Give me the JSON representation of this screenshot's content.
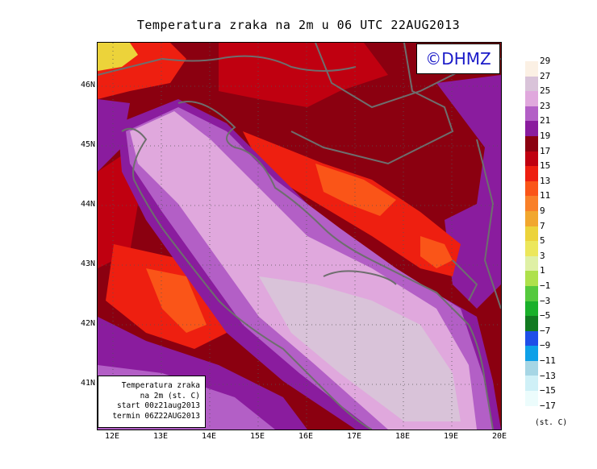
{
  "title": "Temperatura zraka na 2m u 06 UTC 22AUG2013",
  "logo": "©DHMZ",
  "info": {
    "line1": "Temperatura zraka",
    "line2": "na 2m (st. C)",
    "line3": "start 00z21aug2013",
    "line4": "termin 06Z22AUG2013"
  },
  "lat_labels": [
    "46N",
    "45N",
    "44N",
    "43N",
    "42N",
    "41N"
  ],
  "lon_labels": [
    "12E",
    "13E",
    "14E",
    "15E",
    "16E",
    "17E",
    "18E",
    "19E",
    "20E"
  ],
  "colorbar": {
    "labels": [
      "29",
      "27",
      "25",
      "23",
      "21",
      "19",
      "17",
      "15",
      "13",
      "11",
      "9",
      "7",
      "5",
      "3",
      "1",
      "−1",
      "−3",
      "−5",
      "−7",
      "−9",
      "−11",
      "−13",
      "−15",
      "−17"
    ],
    "colors": [
      "#fbf0e4",
      "#d9c3d9",
      "#e0a8dd",
      "#b35fc6",
      "#8a1c9e",
      "#8b0010",
      "#c00010",
      "#ee1f10",
      "#fa5518",
      "#f98028",
      "#f1a72e",
      "#ecd33a",
      "#ece75b",
      "#dff0a5",
      "#aee14b",
      "#55c93d",
      "#1ab02a",
      "#127a21",
      "#1f4fe8",
      "#0ea0e8",
      "#a6d6e5",
      "#cff0f7",
      "#ecfcfc"
    ],
    "unit": "(st. C)"
  },
  "colors": {
    "sea_warm": "#d9c3d9",
    "sea_mid": "#e0a8dd",
    "purple": "#b35fc6",
    "dark_purple": "#8a1c9e",
    "dark_red": "#8b0010",
    "red": "#ee1f10",
    "orange": "#fa5518",
    "border": "#6e6e6e",
    "logo_text": "#1a1ac8"
  }
}
